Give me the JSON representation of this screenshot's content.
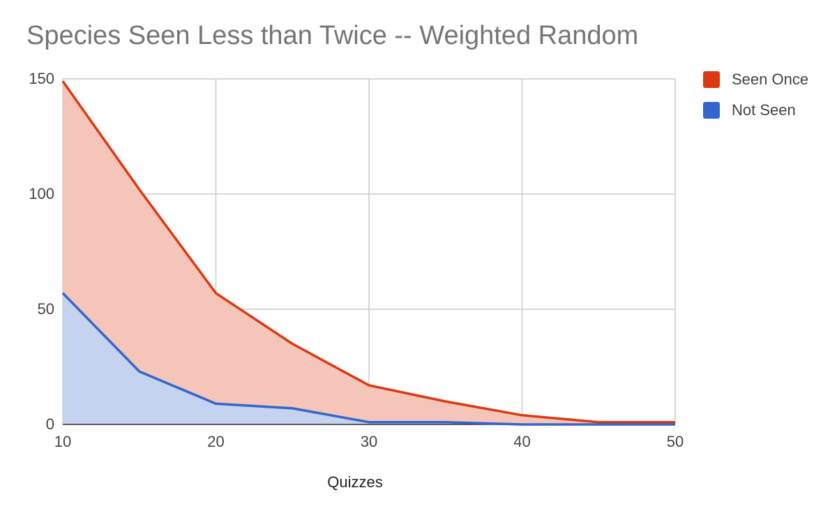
{
  "chart_data": {
    "type": "area",
    "title": "Species Seen Less than Twice -- Weighted Random",
    "xlabel": "Quizzes",
    "ylabel": "",
    "x": [
      10,
      15,
      20,
      25,
      30,
      35,
      40,
      45,
      50
    ],
    "xlim": [
      10,
      50
    ],
    "ylim": [
      0,
      150
    ],
    "x_ticks": [
      "10",
      "20",
      "30",
      "40",
      "50"
    ],
    "y_ticks": [
      "0",
      "50",
      "100",
      "150"
    ],
    "grid": true,
    "stacked": false,
    "legend_position": "right",
    "series": [
      {
        "name": "Seen Once",
        "color": "#dc3912",
        "fill": "#f5c5b9",
        "values": [
          149,
          102,
          57,
          35,
          17,
          10,
          4,
          1,
          1
        ]
      },
      {
        "name": "Not Seen",
        "color": "#3366cc",
        "fill": "#c5d3f0",
        "values": [
          57,
          23,
          9,
          7,
          1,
          1,
          0,
          0,
          0
        ]
      }
    ]
  }
}
